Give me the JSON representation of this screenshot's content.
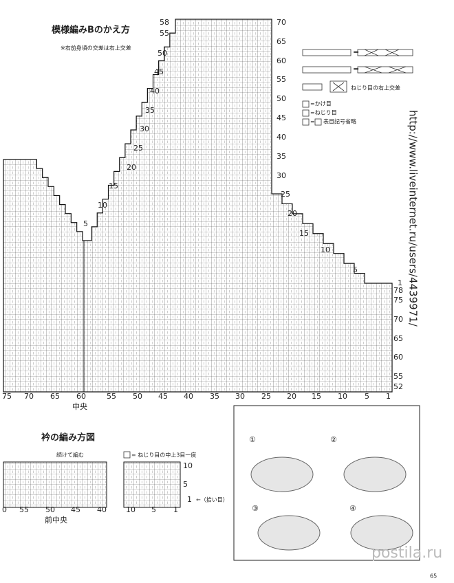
{
  "header": {
    "title": "模様編みBのかえ方",
    "note": "※右前身頃の交差は右上交差"
  },
  "main_chart": {
    "left_rows": [
      "58",
      "55",
      "50",
      "45",
      "40",
      "35",
      "30",
      "25",
      "20",
      "15",
      "10",
      "5"
    ],
    "right_rows": [
      "70",
      "65",
      "60",
      "55",
      "50",
      "45",
      "40",
      "35",
      "30",
      "25",
      "20",
      "15",
      "10",
      "5",
      "1"
    ],
    "right_lower_rows": [
      "78",
      "75",
      "70",
      "65",
      "60",
      "55",
      "52"
    ],
    "columns": [
      "75",
      "70",
      "65",
      "60",
      "55",
      "50",
      "45",
      "40",
      "35",
      "30",
      "25",
      "20",
      "15",
      "10",
      "5",
      "1"
    ],
    "center": "中央"
  },
  "legend": {
    "cross_label": "ねじり目の右上交差",
    "yarn_over": "=かけ目",
    "twisted": "=ねじり目",
    "omitted_prefix": "=",
    "omitted": "表目記号省略"
  },
  "url": "http://www.liveinternet.ru/users/4439971/",
  "collar": {
    "title": "衿の編み方図",
    "continue": "続けて編む",
    "legend": "= ねじり目の中上3目一度",
    "rows": [
      "10",
      "5",
      "1"
    ],
    "pickup": "←（拾い目）",
    "columns": [
      "0",
      "55",
      "50",
      "45",
      "40",
      "10",
      "5",
      "1"
    ],
    "center": "前中央"
  },
  "steps": [
    "①",
    "②",
    "③",
    "④"
  ],
  "watermark": "postila.ru",
  "page_number": "65"
}
